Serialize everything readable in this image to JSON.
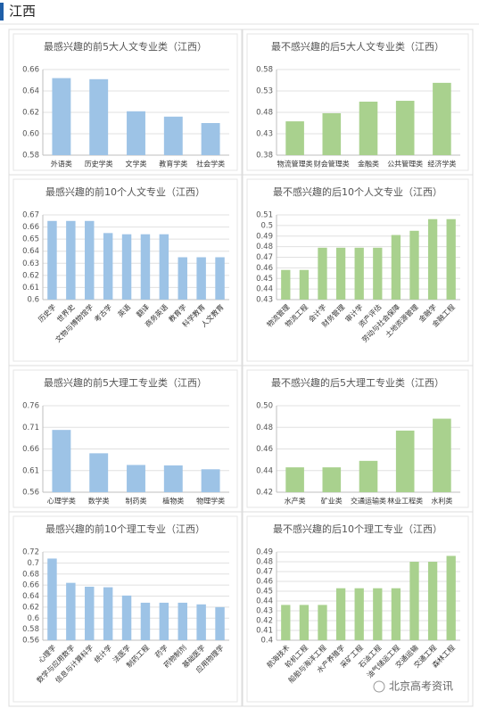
{
  "header": {
    "title": "江西"
  },
  "watermark": "北京高考资讯",
  "chart_data": [
    {
      "type": "bar",
      "title": "最感兴趣的前5大人文专业类（江西）",
      "categories": [
        "外语类",
        "历史学类",
        "文学类",
        "教育学类",
        "社会学类"
      ],
      "values": [
        0.652,
        0.651,
        0.621,
        0.616,
        0.61
      ],
      "color": "#9dc3e6",
      "ylim": [
        0.58,
        0.66
      ],
      "yticks": [
        0.58,
        {
          "value": 0.6,
          "label": "0.60"
        },
        0.62,
        0.64,
        0.66
      ],
      "grid": true
    },
    {
      "type": "bar",
      "title": "最不感兴趣的后5大人文专业类（江西）",
      "categories": [
        "物流管理类",
        "财会管理类",
        "金融类",
        "公共管理类",
        "经济学类"
      ],
      "values": [
        0.459,
        0.478,
        0.505,
        0.507,
        0.549
      ],
      "color": "#a9d18e",
      "ylim": [
        0.38,
        0.58
      ],
      "yticks": [
        0.38,
        0.43,
        0.48,
        0.53,
        0.58
      ],
      "grid": true
    },
    {
      "type": "bar",
      "title": "最感兴趣的前10个人文专业（江西）",
      "categories": [
        "历史学",
        "世界史",
        "文物与博物馆学",
        "考古学",
        "英语",
        "翻译",
        "商务英语",
        "教育学",
        "科学教育",
        "人文教育"
      ],
      "values": [
        0.665,
        0.665,
        0.665,
        0.655,
        0.654,
        0.654,
        0.654,
        0.635,
        0.635,
        0.635
      ],
      "color": "#9dc3e6",
      "ylim": [
        0.6,
        0.67
      ],
      "yticks": [
        0.6,
        0.61,
        0.62,
        0.63,
        0.64,
        0.65,
        0.66,
        0.67
      ],
      "grid": true
    },
    {
      "type": "bar",
      "title": "最不感兴趣的后10个人文专业（江西）",
      "categories": [
        "物流管理",
        "物流工程",
        "会计学",
        "财务管理",
        "审计学",
        "资产评估",
        "劳动与社会保障",
        "土地资源管理",
        "金融学",
        "金融工程"
      ],
      "values": [
        0.458,
        0.458,
        0.479,
        0.479,
        0.479,
        0.479,
        0.491,
        0.495,
        0.506,
        0.506
      ],
      "color": "#a9d18e",
      "ylim": [
        0.43,
        0.51
      ],
      "yticks": [
        0.43,
        0.44,
        0.45,
        0.46,
        0.47,
        0.48,
        0.49,
        0.5,
        0.51
      ],
      "grid": true
    },
    {
      "type": "bar",
      "title": "最感兴趣的前5大理工专业类（江西）",
      "categories": [
        "心理学类",
        "数学类",
        "制药类",
        "植物类",
        "物理学类"
      ],
      "values": [
        0.704,
        0.65,
        0.623,
        0.622,
        0.613
      ],
      "color": "#9dc3e6",
      "ylim": [
        0.56,
        0.76
      ],
      "yticks": [
        0.56,
        0.61,
        0.66,
        0.71,
        0.76
      ],
      "grid": true
    },
    {
      "type": "bar",
      "title": "最不感兴趣的后5大理工专业类（江西）",
      "categories": [
        "水产类",
        "矿业类",
        "交通运输类",
        "林业工程类",
        "水利类"
      ],
      "values": [
        0.443,
        0.443,
        0.449,
        0.477,
        0.488
      ],
      "color": "#a9d18e",
      "ylim": [
        0.42,
        0.5
      ],
      "yticks": [
        0.42,
        0.44,
        0.46,
        0.48,
        {
          "value": 0.5,
          "label": "0.50"
        }
      ],
      "grid": true
    },
    {
      "type": "bar",
      "title": "最感兴趣的前10个理工专业（江西）",
      "categories": [
        "心理学",
        "数学与应用数学",
        "信息与计算科学",
        "统计学",
        "法医学",
        "制药工程",
        "药学",
        "药物制剂",
        "基础医学",
        "应用物理学"
      ],
      "values": [
        0.708,
        0.664,
        0.657,
        0.656,
        0.641,
        0.628,
        0.628,
        0.628,
        0.625,
        0.62
      ],
      "color": "#9dc3e6",
      "ylim": [
        0.56,
        0.72
      ],
      "yticks": [
        0.56,
        0.58,
        0.6,
        0.62,
        0.64,
        0.66,
        0.68,
        0.7,
        0.72
      ],
      "grid": true
    },
    {
      "type": "bar",
      "title": "最不感兴趣的后10个理工专业（江西）",
      "categories": [
        "航海技术",
        "轮机工程",
        "船舶与海洋工程",
        "水产养殖学",
        "采矿工程",
        "石油工程",
        "油气储运工程",
        "交通运输",
        "交通工程",
        "森林工程"
      ],
      "values": [
        0.436,
        0.436,
        0.436,
        0.453,
        0.453,
        0.453,
        0.453,
        0.48,
        0.48,
        0.486
      ],
      "color": "#a9d18e",
      "ylim": [
        0.4,
        0.49
      ],
      "yticks": [
        0.4,
        0.41,
        0.42,
        0.43,
        0.44,
        0.45,
        0.46,
        0.47,
        0.48,
        0.49
      ],
      "grid": true
    }
  ]
}
